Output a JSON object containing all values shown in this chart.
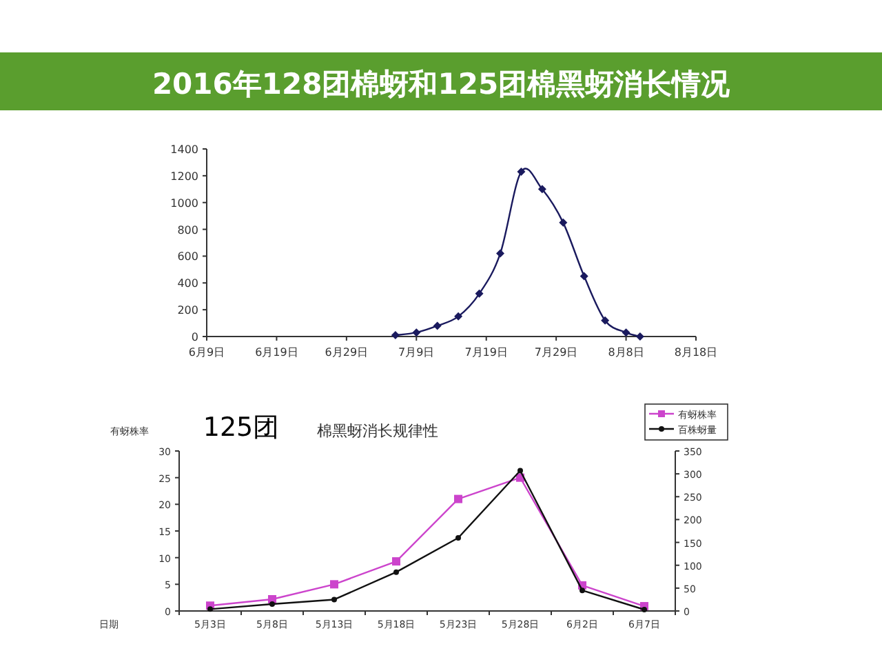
{
  "chart_data": [
    {
      "type": "line",
      "title": "2016年128团棉蚜和125团棉黑蚜消长情况",
      "x": [
        "2016-07-06",
        "2016-07-09",
        "2016-07-12",
        "2016-07-15",
        "2016-07-18",
        "2016-07-21",
        "2016-07-24",
        "2016-07-27",
        "2016-07-30",
        "2016-08-02",
        "2016-08-05",
        "2016-08-08",
        "2016-08-10"
      ],
      "series": [
        {
          "color": "#1a1a5e",
          "marker": "diamond",
          "values": [
            10,
            30,
            80,
            150,
            320,
            620,
            1230,
            1100,
            850,
            450,
            120,
            30,
            0
          ]
        }
      ],
      "xlim": [
        "2016-06-09",
        "2016-08-18"
      ],
      "xticks": [
        {
          "value": "2016-06-09",
          "label": "6月9日"
        },
        {
          "value": "2016-06-19",
          "label": "6月19日"
        },
        {
          "value": "2016-06-29",
          "label": "6月29日"
        },
        {
          "value": "2016-07-09",
          "label": "7月9日"
        },
        {
          "value": "2016-07-19",
          "label": "7月19日"
        },
        {
          "value": "2016-07-29",
          "label": "7月29日"
        },
        {
          "value": "2016-08-08",
          "label": "8月8日"
        },
        {
          "value": "2016-08-18",
          "label": "8月18日"
        }
      ],
      "ylim": [
        0,
        1400
      ],
      "yticks": [
        0,
        200,
        400,
        600,
        800,
        1000,
        1200,
        1400
      ],
      "grid": false,
      "legend": false
    },
    {
      "type": "line",
      "title": "125团",
      "subtitle": "棉黑蚜消长规律性",
      "xlabel": "日期",
      "ylabel": "有蚜株率",
      "categories": [
        "5月3日",
        "5月8日",
        "5月13日",
        "5月18日",
        "5月23日",
        "5月28日",
        "6月2日",
        "6月7日"
      ],
      "series": [
        {
          "name": "有蚜株率",
          "color": "#cc44cc",
          "marker": "square",
          "values": [
            1,
            2.2,
            5,
            9.3,
            21,
            25,
            4.8,
            0.9
          ]
        },
        {
          "name": "百株蚜量",
          "color": "#111111",
          "marker": "circle",
          "axis": "y2",
          "values": [
            4,
            15,
            25,
            85,
            160,
            307,
            45,
            3
          ]
        }
      ],
      "ylim": [
        0,
        30
      ],
      "yticks": [
        0,
        5,
        10,
        15,
        20,
        25,
        30
      ],
      "y2lim": [
        0,
        350
      ],
      "y2ticks": [
        0,
        50,
        100,
        150,
        200,
        250,
        300,
        350
      ],
      "grid": false,
      "legend": "top right"
    }
  ]
}
